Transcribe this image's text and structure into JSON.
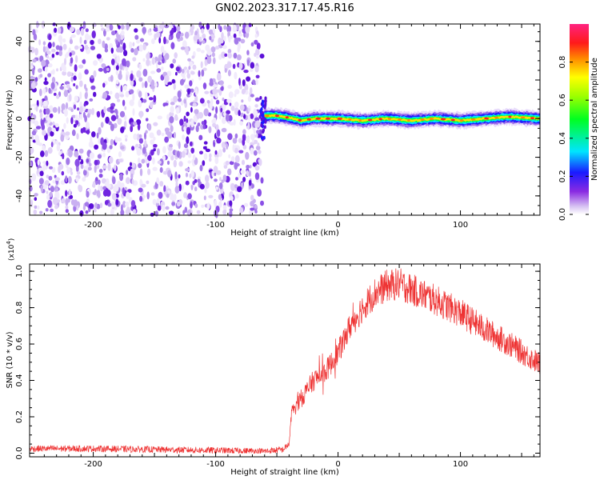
{
  "title": "GN02.2023.317.17.45.R16",
  "chart_data": [
    {
      "type": "heatmap",
      "xlabel": "Height of straight line (km)",
      "ylabel": "Frequency (Hz)",
      "xlim": [
        -252,
        165
      ],
      "ylim": [
        -50,
        49
      ],
      "x_ticks": [
        -200,
        -100,
        0,
        100
      ],
      "y_ticks": [
        -40,
        -20,
        0,
        20,
        40
      ],
      "colorbar": {
        "label": "Normalized spectral amplitude",
        "range": [
          0,
          1
        ],
        "ticks": [
          0.0,
          0.2,
          0.4,
          0.6,
          0.8
        ]
      },
      "noise_region_x": [
        -252,
        -62
      ],
      "signal_region_x": [
        -62,
        165
      ],
      "signal_track": [
        {
          "x": -60,
          "y": 1.5
        },
        {
          "x": -50,
          "y": 1.5
        },
        {
          "x": -40,
          "y": 0.5
        },
        {
          "x": -30,
          "y": -1
        },
        {
          "x": -20,
          "y": 0
        },
        {
          "x": 0,
          "y": 0
        },
        {
          "x": 20,
          "y": -1
        },
        {
          "x": 40,
          "y": 0
        },
        {
          "x": 60,
          "y": -1
        },
        {
          "x": 80,
          "y": 0
        },
        {
          "x": 100,
          "y": -1
        },
        {
          "x": 120,
          "y": 0
        },
        {
          "x": 140,
          "y": 1
        },
        {
          "x": 165,
          "y": 0
        }
      ]
    },
    {
      "type": "line",
      "xlabel": "Height of straight line (km)",
      "ylabel": "SNR (10 * v/v)",
      "y_multiplier": "(x10",
      "y_multiplier_exp": "4",
      "y_multiplier_close": ")",
      "xlim": [
        -252,
        165
      ],
      "ylim": [
        -0.02,
        1.04
      ],
      "x_ticks": [
        -200,
        -100,
        0,
        100
      ],
      "y_ticks": [
        0.0,
        0.2,
        0.4,
        0.6,
        0.8,
        1.0
      ],
      "color": "#ee3333",
      "series": [
        {
          "x": [
            -252,
            -200,
            -150,
            -100,
            -60,
            -45,
            -40,
            -38,
            -35,
            -30,
            -20,
            -10,
            0,
            10,
            20,
            30,
            40,
            50,
            60,
            80,
            100,
            120,
            140,
            165
          ],
          "y": [
            0.025,
            0.025,
            0.02,
            0.015,
            0.01,
            0.02,
            0.05,
            0.2,
            0.26,
            0.3,
            0.4,
            0.45,
            0.55,
            0.7,
            0.8,
            0.88,
            0.92,
            0.93,
            0.9,
            0.84,
            0.77,
            0.68,
            0.6,
            0.49
          ]
        }
      ]
    }
  ]
}
